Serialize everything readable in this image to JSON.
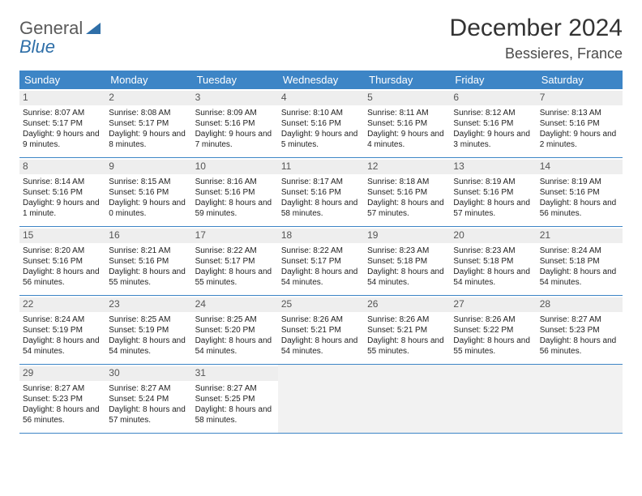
{
  "logo": {
    "word1": "General",
    "word2": "Blue"
  },
  "title": "December 2024",
  "location": "Bessieres, France",
  "colors": {
    "header_bg": "#3d85c6",
    "header_fg": "#ffffff",
    "daynum_bg": "#eeeeee",
    "rule": "#3d85c6",
    "text": "#222222",
    "title": "#333333",
    "logo_gray": "#5a5a5a",
    "logo_blue": "#2f6fa8"
  },
  "dow": [
    "Sunday",
    "Monday",
    "Tuesday",
    "Wednesday",
    "Thursday",
    "Friday",
    "Saturday"
  ],
  "weeks": [
    [
      {
        "n": "1",
        "sr": "8:07 AM",
        "ss": "5:17 PM",
        "dl": "9 hours and 9 minutes."
      },
      {
        "n": "2",
        "sr": "8:08 AM",
        "ss": "5:17 PM",
        "dl": "9 hours and 8 minutes."
      },
      {
        "n": "3",
        "sr": "8:09 AM",
        "ss": "5:16 PM",
        "dl": "9 hours and 7 minutes."
      },
      {
        "n": "4",
        "sr": "8:10 AM",
        "ss": "5:16 PM",
        "dl": "9 hours and 5 minutes."
      },
      {
        "n": "5",
        "sr": "8:11 AM",
        "ss": "5:16 PM",
        "dl": "9 hours and 4 minutes."
      },
      {
        "n": "6",
        "sr": "8:12 AM",
        "ss": "5:16 PM",
        "dl": "9 hours and 3 minutes."
      },
      {
        "n": "7",
        "sr": "8:13 AM",
        "ss": "5:16 PM",
        "dl": "9 hours and 2 minutes."
      }
    ],
    [
      {
        "n": "8",
        "sr": "8:14 AM",
        "ss": "5:16 PM",
        "dl": "9 hours and 1 minute."
      },
      {
        "n": "9",
        "sr": "8:15 AM",
        "ss": "5:16 PM",
        "dl": "9 hours and 0 minutes."
      },
      {
        "n": "10",
        "sr": "8:16 AM",
        "ss": "5:16 PM",
        "dl": "8 hours and 59 minutes."
      },
      {
        "n": "11",
        "sr": "8:17 AM",
        "ss": "5:16 PM",
        "dl": "8 hours and 58 minutes."
      },
      {
        "n": "12",
        "sr": "8:18 AM",
        "ss": "5:16 PM",
        "dl": "8 hours and 57 minutes."
      },
      {
        "n": "13",
        "sr": "8:19 AM",
        "ss": "5:16 PM",
        "dl": "8 hours and 57 minutes."
      },
      {
        "n": "14",
        "sr": "8:19 AM",
        "ss": "5:16 PM",
        "dl": "8 hours and 56 minutes."
      }
    ],
    [
      {
        "n": "15",
        "sr": "8:20 AM",
        "ss": "5:16 PM",
        "dl": "8 hours and 56 minutes."
      },
      {
        "n": "16",
        "sr": "8:21 AM",
        "ss": "5:16 PM",
        "dl": "8 hours and 55 minutes."
      },
      {
        "n": "17",
        "sr": "8:22 AM",
        "ss": "5:17 PM",
        "dl": "8 hours and 55 minutes."
      },
      {
        "n": "18",
        "sr": "8:22 AM",
        "ss": "5:17 PM",
        "dl": "8 hours and 54 minutes."
      },
      {
        "n": "19",
        "sr": "8:23 AM",
        "ss": "5:18 PM",
        "dl": "8 hours and 54 minutes."
      },
      {
        "n": "20",
        "sr": "8:23 AM",
        "ss": "5:18 PM",
        "dl": "8 hours and 54 minutes."
      },
      {
        "n": "21",
        "sr": "8:24 AM",
        "ss": "5:18 PM",
        "dl": "8 hours and 54 minutes."
      }
    ],
    [
      {
        "n": "22",
        "sr": "8:24 AM",
        "ss": "5:19 PM",
        "dl": "8 hours and 54 minutes."
      },
      {
        "n": "23",
        "sr": "8:25 AM",
        "ss": "5:19 PM",
        "dl": "8 hours and 54 minutes."
      },
      {
        "n": "24",
        "sr": "8:25 AM",
        "ss": "5:20 PM",
        "dl": "8 hours and 54 minutes."
      },
      {
        "n": "25",
        "sr": "8:26 AM",
        "ss": "5:21 PM",
        "dl": "8 hours and 54 minutes."
      },
      {
        "n": "26",
        "sr": "8:26 AM",
        "ss": "5:21 PM",
        "dl": "8 hours and 55 minutes."
      },
      {
        "n": "27",
        "sr": "8:26 AM",
        "ss": "5:22 PM",
        "dl": "8 hours and 55 minutes."
      },
      {
        "n": "28",
        "sr": "8:27 AM",
        "ss": "5:23 PM",
        "dl": "8 hours and 56 minutes."
      }
    ],
    [
      {
        "n": "29",
        "sr": "8:27 AM",
        "ss": "5:23 PM",
        "dl": "8 hours and 56 minutes."
      },
      {
        "n": "30",
        "sr": "8:27 AM",
        "ss": "5:24 PM",
        "dl": "8 hours and 57 minutes."
      },
      {
        "n": "31",
        "sr": "8:27 AM",
        "ss": "5:25 PM",
        "dl": "8 hours and 58 minutes."
      },
      null,
      null,
      null,
      null
    ]
  ],
  "labels": {
    "sunrise": "Sunrise: ",
    "sunset": "Sunset: ",
    "daylight": "Daylight: "
  }
}
